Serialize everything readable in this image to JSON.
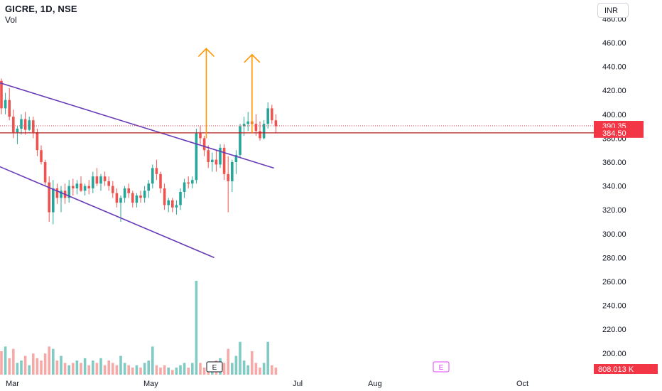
{
  "header": {
    "symbol": "GICRE, 1D, NSE",
    "indicator": "Vol"
  },
  "currency_button": "INR",
  "colors": {
    "up": "#26a69a",
    "down": "#ef5350",
    "vol_up": "#80cbc4",
    "vol_down": "#f7a9a7",
    "channel": "#673ab7",
    "arrow": "#ff9800",
    "hline": "#b71c1c",
    "price_tag": "#f23645",
    "grid": "#ffffff"
  },
  "chart_data": {
    "type": "candlestick",
    "y_axis": {
      "ticks": [
        "460.00",
        "440.00",
        "420.00",
        "400.00",
        "380.00",
        "360.00",
        "340.00",
        "320.00",
        "300.00",
        "280.00",
        "260.00",
        "240.00",
        "220.00",
        "200.00"
      ],
      "top_partial_tick": "480.00",
      "range": [
        192,
        482
      ]
    },
    "x_axis": {
      "ticks": [
        "Mar",
        "May",
        "Jul",
        "Aug",
        "Oct"
      ]
    },
    "price_labels": {
      "last": "390.35",
      "level": "384.50",
      "volume": "808.013 K"
    },
    "horizontal_level": 384.5,
    "event_markers": [
      "E",
      "E"
    ],
    "candles": [
      {
        "o": 428,
        "h": 430,
        "l": 400,
        "c": 405
      },
      {
        "o": 405,
        "h": 418,
        "l": 400,
        "c": 412
      },
      {
        "o": 412,
        "h": 422,
        "l": 395,
        "c": 398
      },
      {
        "o": 398,
        "h": 404,
        "l": 380,
        "c": 385
      },
      {
        "o": 385,
        "h": 390,
        "l": 375,
        "c": 388
      },
      {
        "o": 388,
        "h": 400,
        "l": 383,
        "c": 396
      },
      {
        "o": 396,
        "h": 402,
        "l": 383,
        "c": 387
      },
      {
        "o": 387,
        "h": 398,
        "l": 386,
        "c": 395
      },
      {
        "o": 395,
        "h": 398,
        "l": 380,
        "c": 385
      },
      {
        "o": 385,
        "h": 388,
        "l": 365,
        "c": 370
      },
      {
        "o": 370,
        "h": 374,
        "l": 358,
        "c": 360
      },
      {
        "o": 360,
        "h": 362,
        "l": 340,
        "c": 343
      },
      {
        "o": 343,
        "h": 348,
        "l": 310,
        "c": 318
      },
      {
        "o": 318,
        "h": 345,
        "l": 308,
        "c": 338
      },
      {
        "o": 338,
        "h": 342,
        "l": 325,
        "c": 330
      },
      {
        "o": 330,
        "h": 340,
        "l": 318,
        "c": 336
      },
      {
        "o": 336,
        "h": 342,
        "l": 325,
        "c": 330
      },
      {
        "o": 330,
        "h": 345,
        "l": 326,
        "c": 340
      },
      {
        "o": 340,
        "h": 346,
        "l": 332,
        "c": 338
      },
      {
        "o": 338,
        "h": 345,
        "l": 333,
        "c": 342
      },
      {
        "o": 342,
        "h": 348,
        "l": 335,
        "c": 336
      },
      {
        "o": 336,
        "h": 342,
        "l": 332,
        "c": 340
      },
      {
        "o": 340,
        "h": 345,
        "l": 333,
        "c": 338
      },
      {
        "o": 338,
        "h": 352,
        "l": 334,
        "c": 348
      },
      {
        "o": 348,
        "h": 355,
        "l": 340,
        "c": 342
      },
      {
        "o": 342,
        "h": 350,
        "l": 336,
        "c": 348
      },
      {
        "o": 348,
        "h": 352,
        "l": 340,
        "c": 344
      },
      {
        "o": 344,
        "h": 348,
        "l": 336,
        "c": 340
      },
      {
        "o": 340,
        "h": 344,
        "l": 330,
        "c": 334
      },
      {
        "o": 334,
        "h": 338,
        "l": 322,
        "c": 326
      },
      {
        "o": 326,
        "h": 332,
        "l": 310,
        "c": 330
      },
      {
        "o": 330,
        "h": 340,
        "l": 326,
        "c": 338
      },
      {
        "o": 338,
        "h": 342,
        "l": 330,
        "c": 334
      },
      {
        "o": 334,
        "h": 336,
        "l": 322,
        "c": 326
      },
      {
        "o": 326,
        "h": 334,
        "l": 322,
        "c": 332
      },
      {
        "o": 332,
        "h": 336,
        "l": 326,
        "c": 330
      },
      {
        "o": 330,
        "h": 340,
        "l": 326,
        "c": 336
      },
      {
        "o": 336,
        "h": 345,
        "l": 330,
        "c": 342
      },
      {
        "o": 342,
        "h": 358,
        "l": 338,
        "c": 355
      },
      {
        "o": 355,
        "h": 362,
        "l": 345,
        "c": 350
      },
      {
        "o": 350,
        "h": 352,
        "l": 334,
        "c": 338
      },
      {
        "o": 338,
        "h": 342,
        "l": 320,
        "c": 324
      },
      {
        "o": 324,
        "h": 330,
        "l": 318,
        "c": 328
      },
      {
        "o": 328,
        "h": 330,
        "l": 318,
        "c": 322
      },
      {
        "o": 322,
        "h": 328,
        "l": 316,
        "c": 324
      },
      {
        "o": 324,
        "h": 338,
        "l": 320,
        "c": 335
      },
      {
        "o": 335,
        "h": 346,
        "l": 330,
        "c": 343
      },
      {
        "o": 343,
        "h": 348,
        "l": 338,
        "c": 342
      },
      {
        "o": 342,
        "h": 348,
        "l": 338,
        "c": 345
      },
      {
        "o": 345,
        "h": 388,
        "l": 342,
        "c": 384
      },
      {
        "o": 384,
        "h": 390,
        "l": 375,
        "c": 380
      },
      {
        "o": 380,
        "h": 382,
        "l": 365,
        "c": 370
      },
      {
        "o": 370,
        "h": 374,
        "l": 355,
        "c": 360
      },
      {
        "o": 360,
        "h": 368,
        "l": 352,
        "c": 362
      },
      {
        "o": 362,
        "h": 370,
        "l": 352,
        "c": 358
      },
      {
        "o": 358,
        "h": 375,
        "l": 355,
        "c": 372
      },
      {
        "o": 372,
        "h": 375,
        "l": 345,
        "c": 350
      },
      {
        "o": 350,
        "h": 365,
        "l": 318,
        "c": 344
      },
      {
        "o": 344,
        "h": 362,
        "l": 335,
        "c": 360
      },
      {
        "o": 360,
        "h": 370,
        "l": 350,
        "c": 366
      },
      {
        "o": 366,
        "h": 392,
        "l": 364,
        "c": 390
      },
      {
        "o": 390,
        "h": 398,
        "l": 382,
        "c": 392
      },
      {
        "o": 392,
        "h": 402,
        "l": 386,
        "c": 394
      },
      {
        "o": 394,
        "h": 412,
        "l": 388,
        "c": 392
      },
      {
        "o": 392,
        "h": 400,
        "l": 382,
        "c": 386
      },
      {
        "o": 386,
        "h": 394,
        "l": 378,
        "c": 380
      },
      {
        "o": 380,
        "h": 395,
        "l": 379,
        "c": 392
      },
      {
        "o": 392,
        "h": 410,
        "l": 388,
        "c": 405
      },
      {
        "o": 405,
        "h": 408,
        "l": 392,
        "c": 395
      },
      {
        "o": 395,
        "h": 400,
        "l": 384,
        "c": 390
      }
    ],
    "volumes": [
      0.1,
      0.12,
      0.07,
      0.11,
      0.05,
      0.06,
      0.08,
      0.04,
      0.09,
      0.07,
      0.06,
      0.09,
      0.12,
      0.11,
      0.06,
      0.08,
      0.05,
      0.04,
      0.05,
      0.06,
      0.05,
      0.07,
      0.04,
      0.06,
      0.05,
      0.07,
      0.04,
      0.06,
      0.05,
      0.04,
      0.08,
      0.05,
      0.04,
      0.03,
      0.04,
      0.03,
      0.05,
      0.06,
      0.12,
      0.04,
      0.03,
      0.04,
      0.03,
      0.02,
      0.03,
      0.04,
      0.05,
      0.03,
      0.05,
      0.4,
      0.05,
      0.03,
      0.04,
      0.05,
      0.06,
      0.07,
      0.05,
      0.11,
      0.05,
      0.08,
      0.14,
      0.06,
      0.04,
      0.1,
      0.05,
      0.03,
      0.05,
      0.14,
      0.04,
      0.03
    ],
    "volume_scale_max": 1.0,
    "drawings": {
      "upper_channel": {
        "i1": -1,
        "p1": 427,
        "i2": 68.5,
        "p2": 355
      },
      "lower_channel": {
        "i1": -1,
        "p1": 357,
        "i2": 53.5,
        "p2": 280
      },
      "arrows": [
        {
          "i": 51.5,
          "from": 380,
          "to": 455
        },
        {
          "i": 63.0,
          "from": 384.5,
          "to": 450
        }
      ],
      "last_price_line": 390.35
    }
  }
}
